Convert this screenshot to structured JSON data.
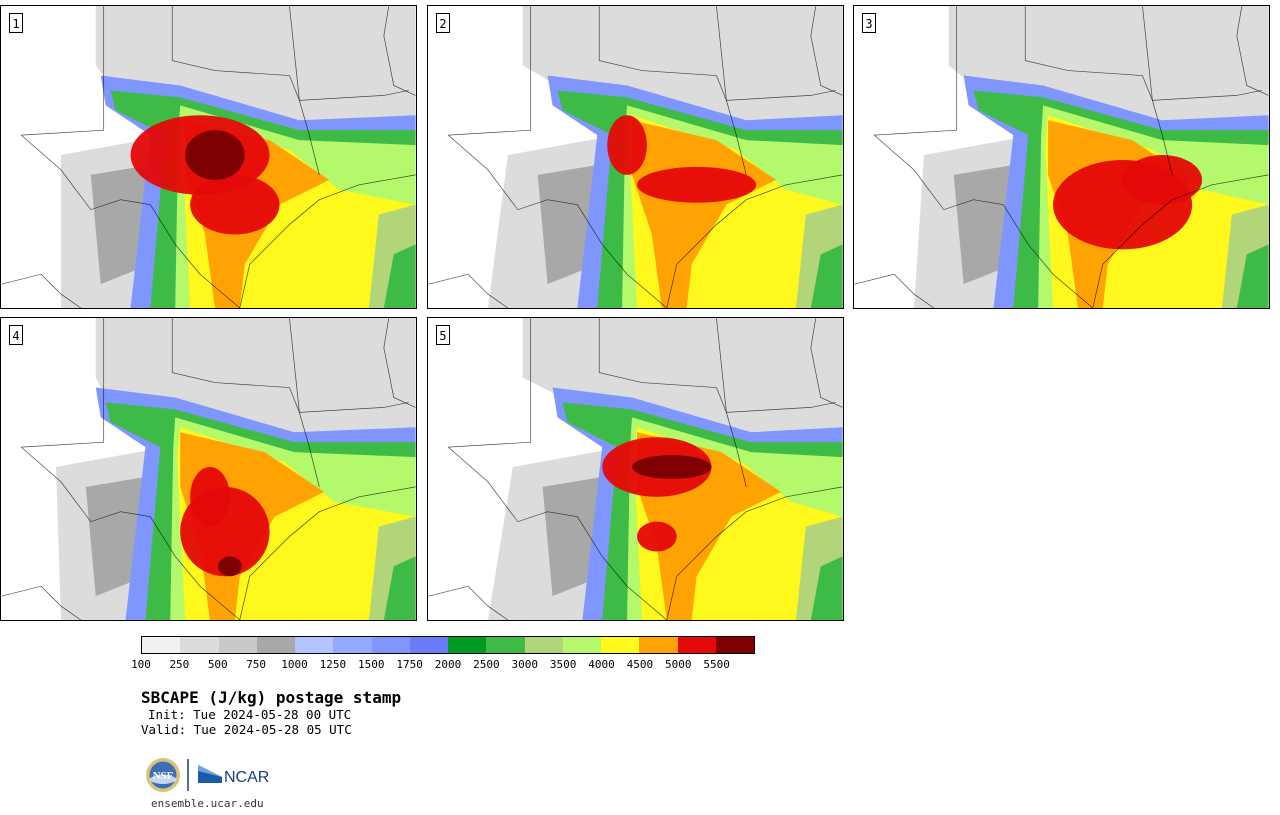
{
  "panels": [
    {
      "label": "1"
    },
    {
      "label": "2"
    },
    {
      "label": "3"
    },
    {
      "label": "4"
    },
    {
      "label": "5"
    }
  ],
  "colorbar": {
    "colors": [
      "#f1f1f1",
      "#dcdcdc",
      "#c9c9c9",
      "#a8a8a8",
      "#b4c4ff",
      "#93abff",
      "#7f96ff",
      "#6a7cf7",
      "#009b22",
      "#3eba47",
      "#b2d57a",
      "#b3f96b",
      "#fff81c",
      "#ffa204",
      "#e50808",
      "#7e0000"
    ],
    "ticks": [
      "100",
      "250",
      "500",
      "750",
      "1000",
      "1250",
      "1500",
      "1750",
      "2000",
      "2500",
      "3000",
      "3500",
      "4000",
      "4500",
      "5000",
      "5500"
    ]
  },
  "header": {
    "title": "SBCAPE (J/kg) postage stamp",
    "init": "Init: Tue 2024-05-28 00 UTC",
    "valid": "Valid: Tue 2024-05-28 05 UTC"
  },
  "footer": {
    "nsf_logo_text": "NSF",
    "ncar_logo_text": "NCAR",
    "url": "ensemble.ucar.edu"
  }
}
